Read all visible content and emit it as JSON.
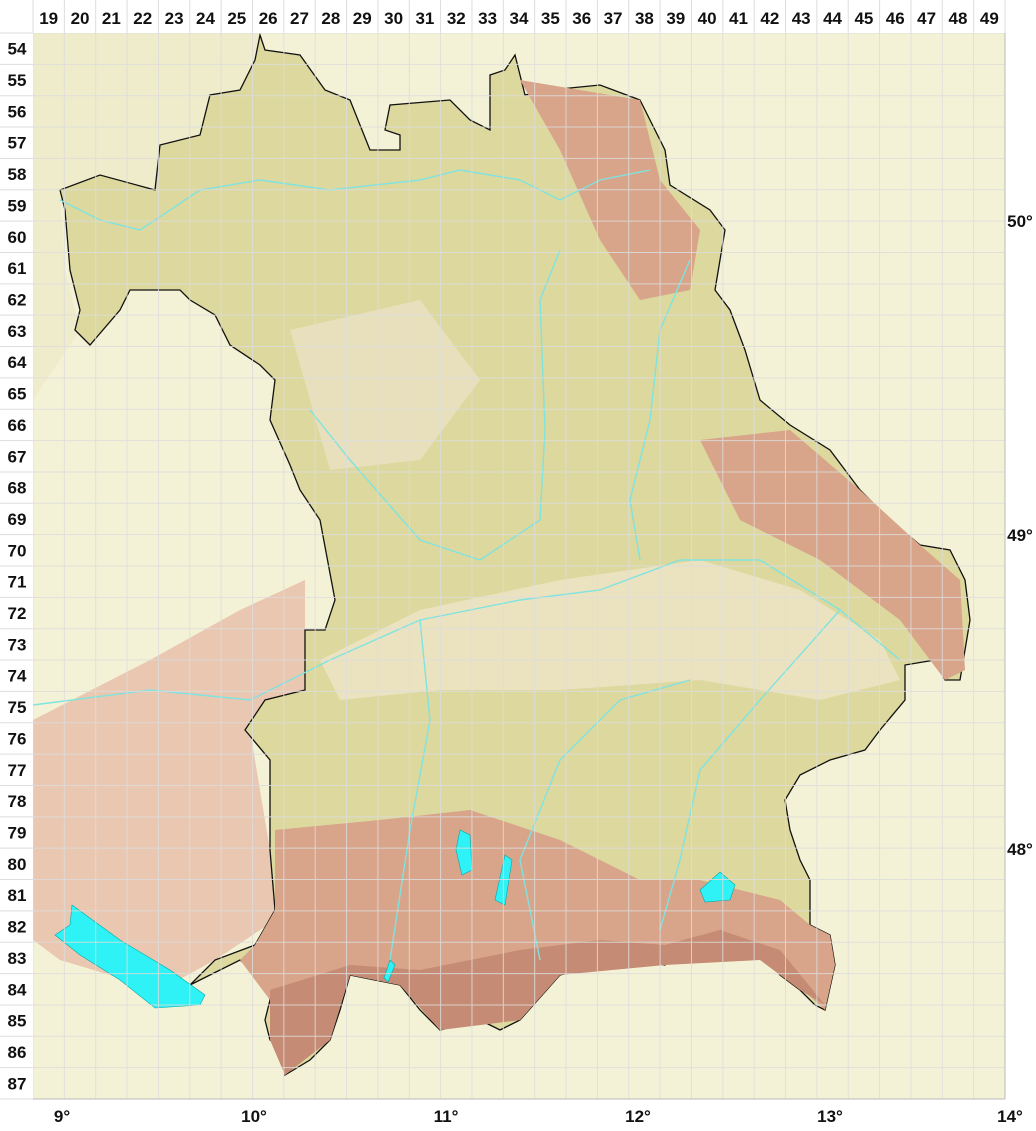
{
  "map": {
    "grid_columns": [
      "19",
      "20",
      "21",
      "22",
      "23",
      "24",
      "25",
      "26",
      "27",
      "28",
      "29",
      "30",
      "31",
      "32",
      "33",
      "34",
      "35",
      "36",
      "37",
      "38",
      "39",
      "40",
      "41",
      "42",
      "43",
      "44",
      "45",
      "46",
      "47",
      "48",
      "49"
    ],
    "grid_rows": [
      "54",
      "55",
      "56",
      "57",
      "58",
      "59",
      "60",
      "61",
      "62",
      "63",
      "64",
      "65",
      "66",
      "67",
      "68",
      "69",
      "70",
      "71",
      "72",
      "73",
      "74",
      "75",
      "76",
      "77",
      "78",
      "79",
      "80",
      "81",
      "82",
      "83",
      "84",
      "85",
      "86",
      "87"
    ],
    "longitude_labels": [
      {
        "value": 9,
        "text": "9°"
      },
      {
        "value": 10,
        "text": "10°"
      },
      {
        "value": 11,
        "text": "11°"
      },
      {
        "value": 12,
        "text": "12°"
      },
      {
        "value": 13,
        "text": "13°"
      },
      {
        "value": 14,
        "text": "14°"
      }
    ],
    "latitude_labels": [
      {
        "value": 50,
        "text": "50°"
      },
      {
        "value": 49,
        "text": "49°"
      },
      {
        "value": 48,
        "text": "48°"
      }
    ],
    "colors": {
      "outside": "#f4f2d6",
      "lowland": "#dcd89e",
      "plain": "#ebe3c0",
      "upland": "#d8a48a",
      "alps": "#c58b74",
      "water": "#2ef2f5",
      "river": "#7fe3e0",
      "border": "#111111",
      "grid": "#dddddd"
    }
  }
}
